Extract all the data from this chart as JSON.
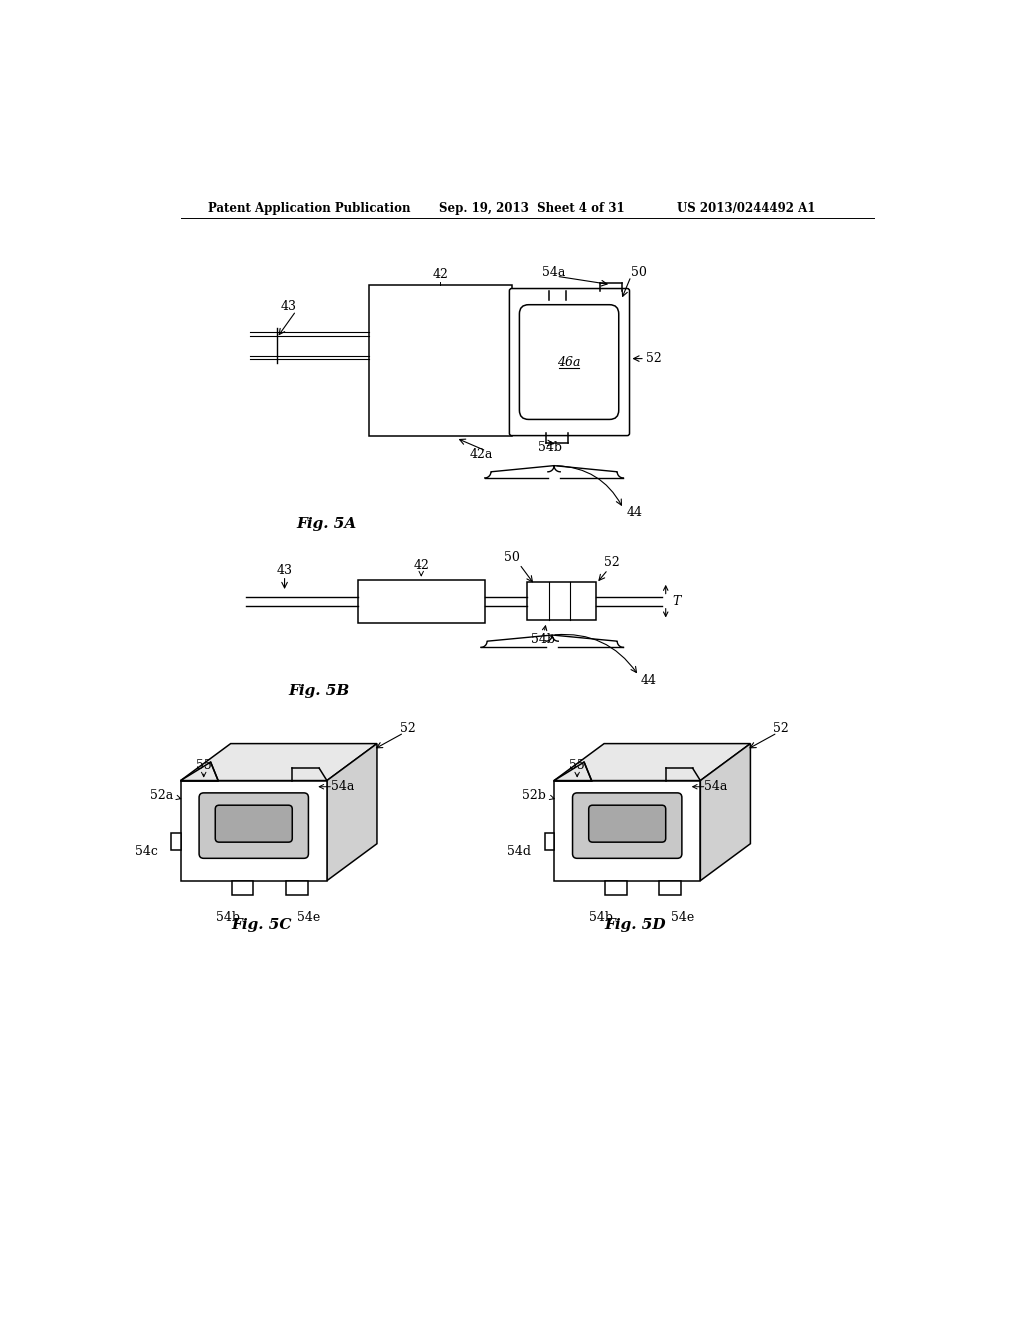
{
  "bg_color": "#ffffff",
  "header_left": "Patent Application Publication",
  "header_mid": "Sep. 19, 2013  Sheet 4 of 31",
  "header_right": "US 2013/0244492 A1",
  "fig5a_label": "Fig. 5A",
  "fig5b_label": "Fig. 5B",
  "fig5c_label": "Fig. 5C",
  "fig5d_label": "Fig. 5D",
  "lw": 1.1
}
